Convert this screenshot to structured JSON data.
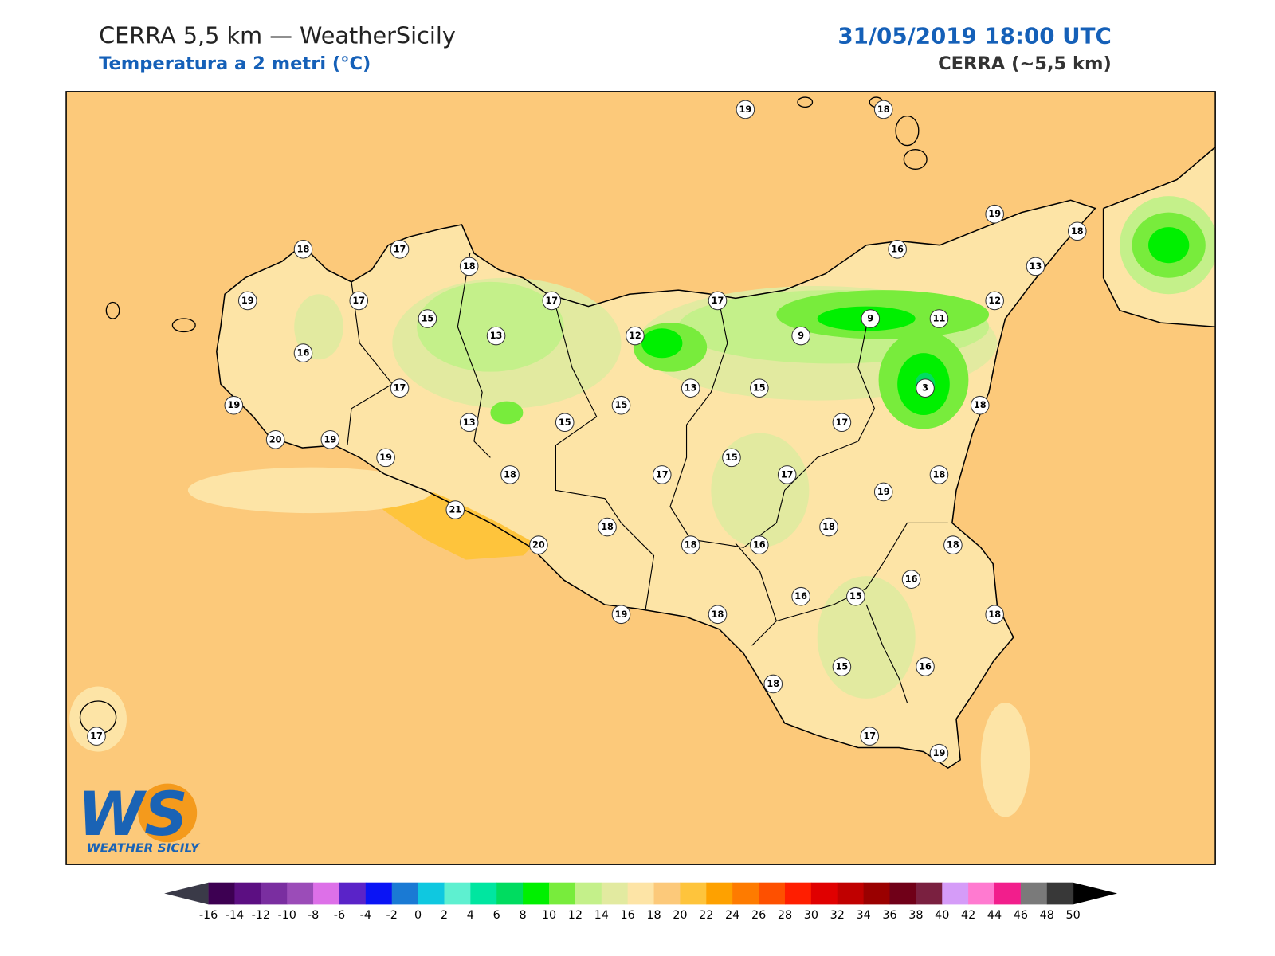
{
  "header": {
    "title": "CERRA 5,5 km — WeatherSicily",
    "subtitle": "Temperatura a 2 metri (°C)",
    "datetime": "31/05/2019 18:00 UTC",
    "model": "CERRA (~5,5 km)"
  },
  "logo": {
    "mark": "WS",
    "name": "WEATHER SICILY"
  },
  "stations": [
    19,
    18,
    19,
    18,
    18,
    17,
    18,
    16,
    13,
    19,
    17,
    17,
    17,
    12,
    15,
    9,
    11,
    13,
    12,
    9,
    16,
    3,
    17,
    13,
    15,
    19,
    15,
    18,
    13,
    15,
    17,
    20,
    19,
    19,
    15,
    18,
    17,
    17,
    18,
    19,
    21,
    18,
    18,
    20,
    18,
    16,
    18,
    16,
    16,
    15,
    19,
    18,
    18,
    15,
    16,
    18,
    17,
    17,
    19
  ],
  "colorbar": {
    "ticks": [
      -16,
      -14,
      -12,
      -10,
      -8,
      -6,
      -4,
      -2,
      0,
      2,
      4,
      6,
      8,
      10,
      12,
      14,
      16,
      18,
      20,
      22,
      24,
      26,
      28,
      30,
      32,
      34,
      36,
      38,
      40,
      42,
      44,
      46,
      48,
      50
    ],
    "colors": [
      "#3d0052",
      "#5c0f82",
      "#7a2ea0",
      "#9b4cb8",
      "#dd70e8",
      "#5a23c8",
      "#0a14f5",
      "#1a7ad4",
      "#0fc8e0",
      "#5ef0d0",
      "#00e6a0",
      "#00dc60",
      "#00f000",
      "#78ec3c",
      "#c4f08a",
      "#e2eaa0",
      "#fde4a6",
      "#fcc97a",
      "#fec43c",
      "#fea100",
      "#fe7b00",
      "#fe5000",
      "#ff1e00",
      "#e00000",
      "#c00000",
      "#9a0000",
      "#700018",
      "#7a2040",
      "#d59cf8",
      "#ff7ad0",
      "#f21e8c",
      "#7a7a7a",
      "#383838"
    ],
    "under_color": "#3a3a48",
    "over_color": "#000000"
  }
}
